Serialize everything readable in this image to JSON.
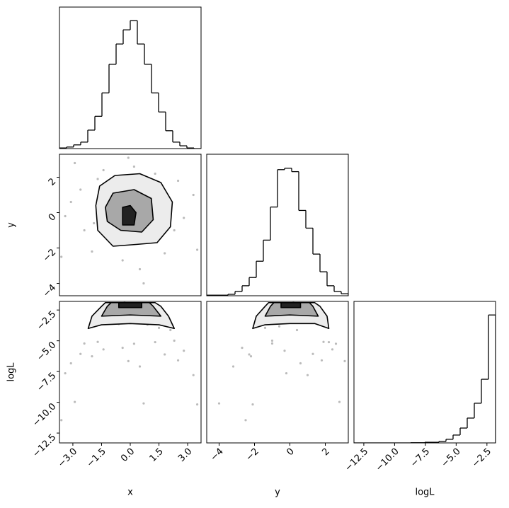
{
  "chart_data": [
    {
      "type": "histogram",
      "bins": [
        -3.7,
        -3.33,
        -2.96,
        -2.59,
        -2.22,
        -1.85,
        -1.48,
        -1.11,
        -0.74,
        -0.37,
        0,
        0.37,
        0.74,
        1.11,
        1.48,
        1.85,
        2.22,
        2.59,
        2.96,
        3.33,
        3.7
      ],
      "counts": [
        2,
        5,
        12,
        21,
        60,
        105,
        181,
        274,
        340,
        386,
        416,
        340,
        274,
        181,
        119,
        58,
        21,
        9,
        2,
        0
      ],
      "xlim": [
        -3.7,
        3.7
      ],
      "ylim": [
        0,
        460
      ],
      "color": "#000000"
    },
    {
      "type": "scatter",
      "xlim": [
        -3.7,
        3.7
      ],
      "ylim": [
        -4.7,
        3.3
      ],
      "ylabel": "y",
      "yticks": [
        {
          "value": -4,
          "label": "−4"
        },
        {
          "value": -2,
          "label": "−2"
        },
        0,
        2
      ],
      "x": [
        0.3,
        -1.2,
        2.1,
        -2.4,
        0.9,
        -0.6,
        1.5,
        -1.7,
        2.8,
        -3.1,
        0.2,
        -0.4,
        1.1,
        -0.9,
        2.5,
        -2.0,
        3.3,
        -3.4,
        0.5,
        -0.1,
        1.8,
        -1.4,
        3.5,
        -2.9,
        0.7,
        -3.6,
        0.0,
        -0.3,
        0.6,
        -1.9,
        1.3,
        -1.1,
        2.3,
        -2.6,
        0.4,
        -0.7
      ],
      "y": [
        -0.5,
        0.8,
        0.4,
        -1.0,
        1.7,
        -1.8,
        -1.4,
        1.9,
        -0.3,
        0.6,
        2.6,
        -2.7,
        0.1,
        -0.3,
        1.8,
        -2.2,
        1.0,
        -0.2,
        -3.2,
        3.1,
        -2.3,
        2.4,
        -2.1,
        2.8,
        -4.0,
        -2.5,
        0.6,
        0.2,
        1.0,
        -0.6,
        2.2,
        -1.3,
        -1.0,
        1.3,
        -1.1,
        1.4
      ],
      "color": "#bbbbbb",
      "contour_fills": [
        "#ececec",
        "#a8a8a8",
        "#222222"
      ],
      "contours": [
        {
          "x": [
            -1.8,
            -1.6,
            -0.8,
            0.5,
            1.6,
            2.2,
            2.1,
            1.4,
            0.3,
            -0.9,
            -1.7
          ],
          "y": [
            0.4,
            1.5,
            2.1,
            2.2,
            1.7,
            0.6,
            -0.8,
            -1.7,
            -1.8,
            -1.9,
            -1.0
          ]
        },
        {
          "x": [
            -1.3,
            -0.9,
            0.2,
            1.1,
            1.2,
            0.6,
            -0.5,
            -1.2
          ],
          "y": [
            0.3,
            1.1,
            1.3,
            0.8,
            -0.4,
            -1.1,
            -1.0,
            -0.5
          ]
        },
        {
          "x": [
            -0.4,
            -0.4,
            0.0,
            0.3,
            0.2
          ],
          "y": [
            -0.7,
            0.3,
            0.4,
            0.0,
            -0.7
          ]
        }
      ]
    },
    {
      "type": "histogram",
      "bins": [
        -4.7,
        -4.3,
        -3.9,
        -3.5,
        -3.1,
        -2.7,
        -2.3,
        -1.9,
        -1.5,
        -1.1,
        -0.7,
        -0.3,
        0.1,
        0.5,
        0.9,
        1.3,
        1.7,
        2.1,
        2.5,
        2.9,
        3.3
      ],
      "counts": [
        2,
        2,
        2,
        5,
        15,
        35,
        64,
        121,
        195,
        311,
        442,
        447,
        435,
        299,
        237,
        146,
        84,
        35,
        15,
        7
      ],
      "xlim": [
        -4.7,
        3.3
      ],
      "ylim": [
        0,
        496
      ],
      "color": "#000000"
    },
    {
      "type": "scatter",
      "xlim": [
        -3.7,
        3.7
      ],
      "ylim": [
        -13.3,
        -1.8
      ],
      "xlabel": "x",
      "ylabel": "logL",
      "xticks": [
        {
          "value": -3,
          "label": "−3.0"
        },
        {
          "value": -1.5,
          "label": "−1.5"
        },
        {
          "value": 0,
          "label": "0.0"
        },
        1.5,
        {
          "value": 3,
          "label": "3.0"
        }
      ],
      "yticks": [
        {
          "value": -2.5,
          "label": "−2.5"
        },
        {
          "value": -5,
          "label": "−5.0"
        },
        {
          "value": -7.5,
          "label": "−7.5"
        },
        {
          "value": -10,
          "label": "−10.0"
        },
        {
          "value": -12.5,
          "label": "−12.5"
        }
      ],
      "x": [
        0.3,
        -1.2,
        2.1,
        -2.4,
        0.9,
        -0.6,
        1.5,
        -1.7,
        2.8,
        -3.1,
        0.2,
        -0.4,
        1.1,
        -0.9,
        2.5,
        -2.0,
        3.3,
        -3.4,
        0.5,
        -0.1,
        1.8,
        -1.4,
        3.5,
        -2.9,
        0.7,
        -3.6,
        0.0,
        -0.3,
        0.6,
        -1.9,
        1.3,
        -1.1,
        2.3,
        -2.6,
        0.4,
        -0.7
      ],
      "y": [
        -2.01,
        -2.88,
        -4.13,
        -5.22,
        -3.69,
        -3.64,
        -3.95,
        -5.09,
        -5.81,
        -6.83,
        -5.24,
        -5.57,
        -2.45,
        -2.29,
        -6.59,
        -6.26,
        -7.79,
        -7.64,
        -7.09,
        -6.65,
        -6.11,
        -5.7,
        -10.17,
        -9.97,
        -10.09,
        -11.45,
        -2.02,
        -1.91,
        -2.52,
        -3.83,
        -5.11,
        -3.29,
        -4.99,
        -6.07,
        -2.53,
        -3.07
      ],
      "color": "#bbbbbb",
      "contour_fills": [
        "#ececec",
        "#a8a8a8",
        "#222222"
      ],
      "contours": [
        {
          "x": [
            -2.2,
            -2.0,
            -1.5,
            -1.3,
            1.3,
            1.6,
            2.0,
            2.3,
            1.5,
            0,
            -1.5
          ],
          "y": [
            -4.0,
            -3.0,
            -2.2,
            -1.9,
            -1.9,
            -2.2,
            -3.0,
            -4.0,
            -3.7,
            -3.6,
            -3.7
          ]
        },
        {
          "x": [
            -1.5,
            -1.2,
            -1.0,
            1.0,
            1.2,
            1.6,
            0
          ],
          "y": [
            -3.0,
            -2.2,
            -1.9,
            -1.9,
            -2.2,
            -3.0,
            -2.9
          ]
        },
        {
          "x": [
            -0.6,
            -0.6,
            0.6,
            0.6
          ],
          "y": [
            -2.3,
            -1.9,
            -1.9,
            -2.3
          ]
        }
      ]
    },
    {
      "type": "scatter",
      "xlim": [
        -4.7,
        3.3
      ],
      "ylim": [
        -13.3,
        -1.8
      ],
      "xlabel": "y",
      "xticks": [
        {
          "value": -4,
          "label": "−4"
        },
        {
          "value": -2,
          "label": "−2"
        },
        0,
        2
      ],
      "x": [
        -0.5,
        0.8,
        0.4,
        -1.0,
        1.7,
        -1.8,
        -1.4,
        1.9,
        -0.3,
        0.6,
        2.6,
        -2.7,
        0.1,
        -0.3,
        1.8,
        -2.2,
        1.0,
        -0.2,
        -3.2,
        3.1,
        -2.3,
        2.4,
        -2.1,
        2.8,
        -4.0,
        -2.5,
        0.6,
        0.2,
        1.0,
        -0.6,
        2.2,
        -1.3,
        -1.0,
        1.3,
        -1.1,
        1.4
      ],
      "y": [
        -2.01,
        -2.88,
        -4.13,
        -5.22,
        -3.69,
        -3.64,
        -3.95,
        -5.09,
        -5.81,
        -6.83,
        -5.24,
        -5.57,
        -2.45,
        -2.29,
        -6.59,
        -6.26,
        -7.79,
        -7.64,
        -7.09,
        -6.65,
        -6.11,
        -5.7,
        -10.17,
        -9.97,
        -10.09,
        -11.45,
        -2.02,
        -1.91,
        -2.52,
        -3.83,
        -5.11,
        -3.29,
        -4.99,
        -6.07,
        -2.53,
        -3.07
      ],
      "color": "#bbbbbb",
      "contour_fills": [
        "#ececec",
        "#a8a8a8",
        "#222222"
      ],
      "contours": [
        {
          "x": [
            -2.1,
            -1.9,
            -1.4,
            -1.2,
            1.4,
            1.7,
            2.1,
            2.2,
            1.4,
            0,
            -1.4
          ],
          "y": [
            -4.0,
            -3.0,
            -2.2,
            -1.9,
            -1.9,
            -2.2,
            -3.0,
            -4.0,
            -3.6,
            -3.6,
            -3.7
          ]
        },
        {
          "x": [
            -1.4,
            -1.1,
            -0.9,
            1.1,
            1.3,
            1.6,
            0
          ],
          "y": [
            -3.0,
            -2.2,
            -1.9,
            -1.9,
            -2.2,
            -3.0,
            -2.9
          ]
        },
        {
          "x": [
            -0.5,
            -0.5,
            0.6,
            0.6
          ],
          "y": [
            -2.3,
            -1.9,
            -1.9,
            -2.3
          ]
        }
      ]
    },
    {
      "type": "histogram",
      "bins": [
        -13.3,
        -12.725,
        -12.15,
        -11.575,
        -11,
        -10.425,
        -9.85,
        -9.275,
        -8.7,
        -8.125,
        -7.55,
        -6.975,
        -6.4,
        -5.825,
        -5.25,
        -4.675,
        -4.1,
        -3.525,
        -2.95,
        -2.375,
        -1.8
      ],
      "counts": [
        0,
        0,
        0,
        0,
        0,
        0,
        0,
        0,
        1,
        1,
        3,
        3,
        7,
        17,
        37,
        70,
        117,
        187,
        300,
        603
      ],
      "xlim": [
        -13.3,
        -1.8
      ],
      "ylim": [
        0,
        667
      ],
      "xlabel": "logL",
      "color": "#000000",
      "xticks": [
        {
          "value": -12.5,
          "label": "−12.5"
        },
        {
          "value": -10,
          "label": "−10.0"
        },
        {
          "value": -7.5,
          "label": "−7.5"
        },
        {
          "value": -5,
          "label": "−5.0"
        },
        {
          "value": -2.5,
          "label": "−2.5"
        }
      ]
    }
  ]
}
